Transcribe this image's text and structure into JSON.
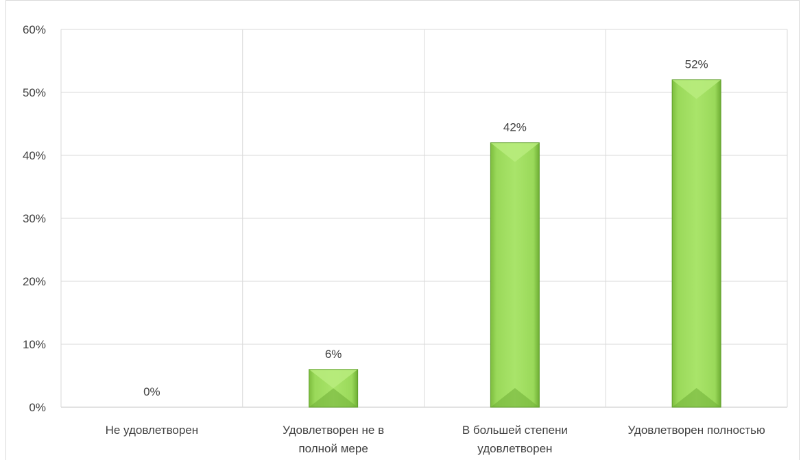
{
  "chart_data": {
    "type": "bar",
    "title": "",
    "xlabel": "",
    "ylabel": "",
    "categories": [
      [
        "Не удовлетворен"
      ],
      [
        "Удовлетворен не в",
        "полной мере"
      ],
      [
        "В большей степени",
        "удовлетворен"
      ],
      [
        "Удовлетворен полностью"
      ]
    ],
    "values": [
      0,
      6,
      42,
      52
    ],
    "data_labels": [
      "0%",
      "6%",
      "42%",
      "52%"
    ],
    "ylim": [
      0,
      60
    ],
    "yticks": [
      0,
      10,
      20,
      30,
      40,
      50,
      60
    ],
    "ytick_labels": [
      "0%",
      "10%",
      "20%",
      "30%",
      "40%",
      "50%",
      "60%"
    ],
    "grid": true,
    "vertical_gridlines": true,
    "legend": "none",
    "colors": {
      "bar_light": "#a9e46a",
      "bar_mid": "#8fd14f",
      "bar_dark": "#5e9e2a",
      "grid": "#d9d9d9",
      "text": "#404040"
    }
  }
}
